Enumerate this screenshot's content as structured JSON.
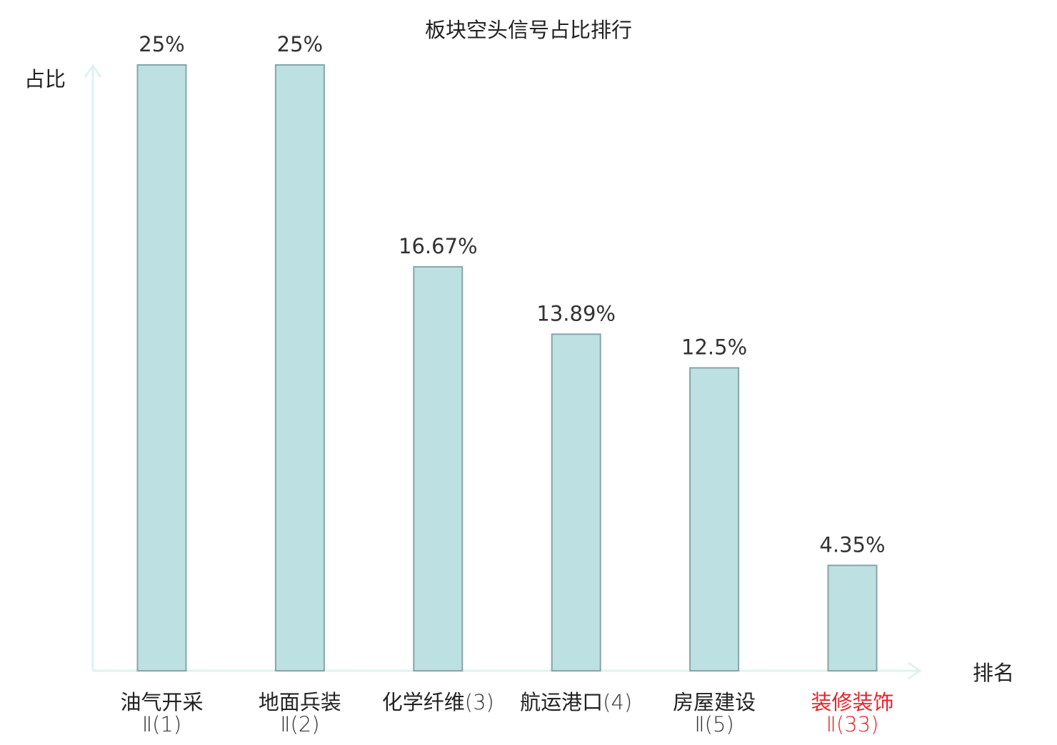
{
  "chart_data": {
    "type": "bar",
    "title": "板块空头信号占比排行",
    "ylabel": "占比",
    "xlabel": "排名",
    "ylim": [
      0,
      25
    ],
    "grid": false,
    "categories": [
      {
        "name": "油气开采",
        "rank": "Ⅱ(1)",
        "highlight": false
      },
      {
        "name": "地面兵装",
        "rank": "Ⅱ(2)",
        "highlight": false
      },
      {
        "name": "化学纤维",
        "rank": "(3)",
        "highlight": false
      },
      {
        "name": "航运港口",
        "rank": "(4)",
        "highlight": false
      },
      {
        "name": "房屋建设",
        "rank": "Ⅱ(5)",
        "highlight": false
      },
      {
        "name": "装修装饰",
        "rank": "Ⅱ(33)",
        "highlight": true
      }
    ],
    "values": [
      25,
      25,
      16.67,
      13.89,
      12.5,
      4.35
    ],
    "value_labels": [
      "25%",
      "25%",
      "16.67%",
      "13.89%",
      "12.5%",
      "4.35%"
    ]
  },
  "colors": {
    "bar_fill": "#bde0e2",
    "bar_stroke": "#86a6a8",
    "axis": "#e0f2f0",
    "text": "#222222",
    "highlight": "#e3242b"
  }
}
